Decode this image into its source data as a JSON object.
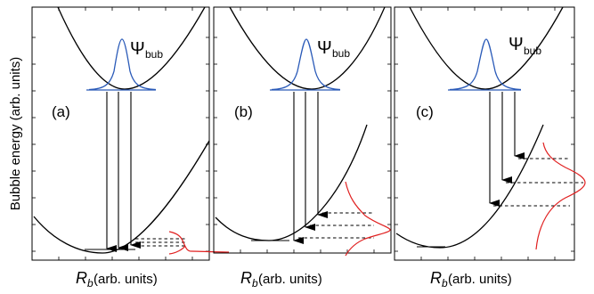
{
  "figure": {
    "y_axis_label": "Bubble energy (arb. units)",
    "x_axis_label_symbol": "R",
    "x_axis_label_subscript": "b",
    "x_axis_label_units": " (arb. units)",
    "psi_symbol": "Ψ",
    "psi_subscript": "bub"
  },
  "panels": [
    {
      "label": "(a)",
      "x_label_symbol": "R",
      "x_label_sub": "b",
      "x_label_units": " (arb. units)"
    },
    {
      "label": "(b)",
      "x_label_symbol": "R",
      "x_label_sub": "b",
      "x_label_units": " (arb. units)"
    },
    {
      "label": "(c)",
      "x_label_symbol": "R",
      "x_label_sub": "b",
      "x_label_units": " (arb. units)"
    }
  ],
  "colors": {
    "wavefunction": "#2a5ab8",
    "spectrum": "#e02020",
    "lines": "#000000"
  }
}
